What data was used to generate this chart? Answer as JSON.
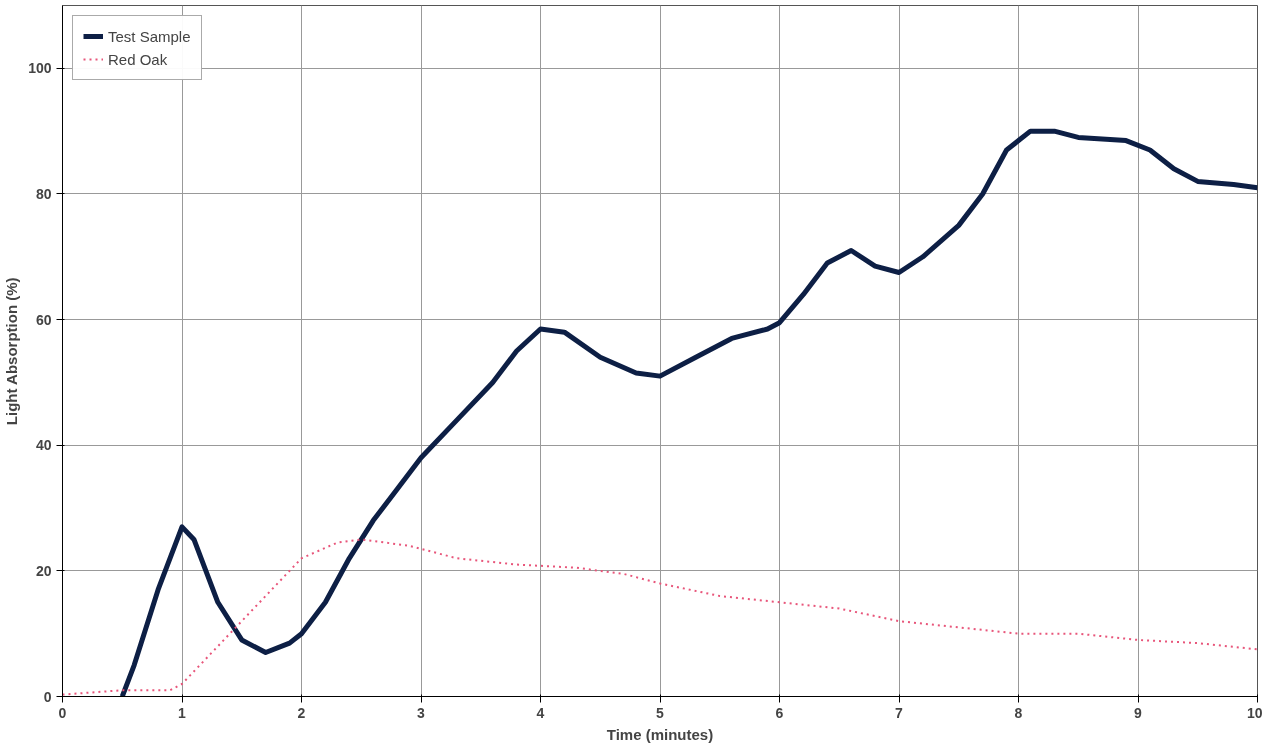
{
  "chart_data": {
    "type": "line",
    "xlabel": "Time (minutes)",
    "ylabel": "Light Absorption (%)",
    "xlim": [
      0,
      10
    ],
    "ylim": [
      0,
      110
    ],
    "xticks": [
      0,
      1,
      2,
      3,
      4,
      5,
      6,
      7,
      8,
      9,
      10
    ],
    "yticks": [
      0,
      20,
      40,
      60,
      80,
      100
    ],
    "grid": true,
    "legend": "top left",
    "marker": "none",
    "series": [
      {
        "name": "Test Sample",
        "color": "#0d1f45",
        "line_style": "solid",
        "x": [
          0.5,
          0.6,
          0.8,
          1.0,
          1.1,
          1.3,
          1.5,
          1.7,
          1.9,
          2.0,
          2.2,
          2.4,
          2.6,
          2.8,
          3.0,
          3.3,
          3.6,
          3.8,
          4.0,
          4.2,
          4.5,
          4.8,
          5.0,
          5.3,
          5.6,
          5.9,
          6.0,
          6.2,
          6.4,
          6.6,
          6.8,
          7.0,
          7.2,
          7.5,
          7.7,
          7.9,
          8.1,
          8.3,
          8.5,
          8.9,
          9.1,
          9.3,
          9.5,
          9.8,
          10
        ],
        "values": [
          0,
          5,
          17,
          27,
          25,
          15,
          9,
          7,
          8.5,
          10,
          15,
          22,
          28,
          33,
          38,
          44,
          50,
          55,
          58.5,
          58,
          54,
          51.5,
          51,
          54,
          57,
          58.5,
          59.5,
          64,
          69,
          71,
          68.5,
          67.5,
          70,
          75,
          80,
          87,
          90,
          90,
          89,
          88.5,
          87,
          84,
          82,
          81.5,
          81
        ]
      },
      {
        "name": "Red Oak",
        "color": "#e8557a",
        "line_style": "dotted",
        "x": [
          0,
          0.5,
          0.9,
          1.0,
          1.2,
          1.5,
          1.8,
          2.0,
          2.3,
          2.5,
          2.9,
          3.3,
          3.8,
          4.3,
          4.7,
          5.0,
          5.5,
          6.0,
          6.5,
          7.0,
          7.5,
          8.0,
          8.5,
          9.0,
          9.5,
          10
        ],
        "values": [
          0.3,
          1,
          1,
          2,
          6,
          12,
          18,
          22,
          24.5,
          25,
          24,
          22,
          21,
          20.5,
          19.5,
          18,
          16,
          15,
          14,
          12,
          11,
          10,
          10,
          9,
          8.5,
          7.5
        ]
      }
    ]
  }
}
